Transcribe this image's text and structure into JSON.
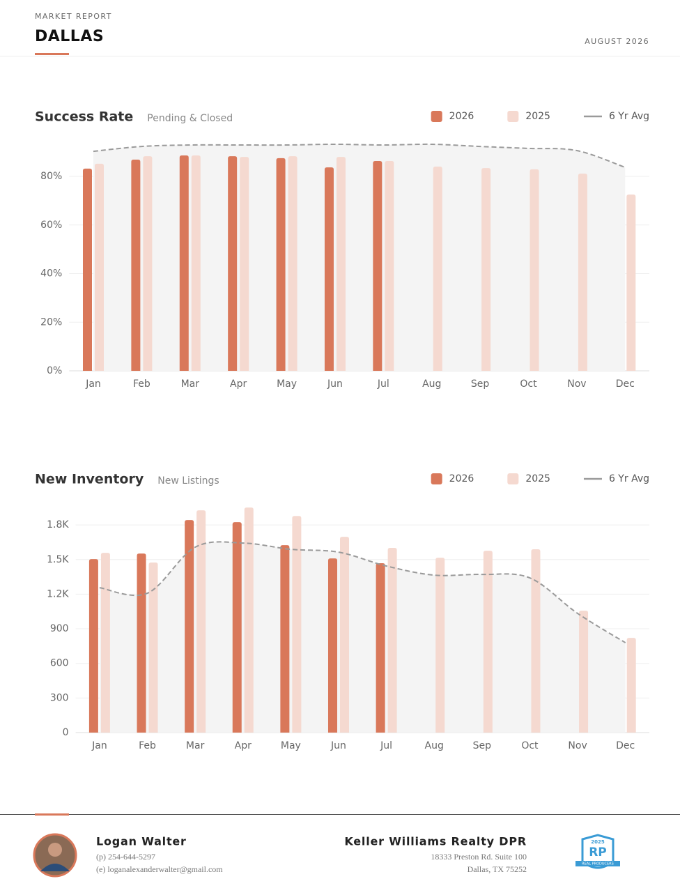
{
  "header": {
    "label": "MARKET REPORT",
    "city": "DALLAS",
    "date": "AUGUST 2026"
  },
  "chart_data": [
    {
      "type": "bar",
      "title": "Success Rate",
      "subtitle": "Pending & Closed",
      "categories": [
        "Jan",
        "Feb",
        "Mar",
        "Apr",
        "May",
        "Jun",
        "Jul",
        "Aug",
        "Sep",
        "Oct",
        "Nov",
        "Dec"
      ],
      "series": [
        {
          "name": "2026",
          "color": "#d9785a",
          "values": [
            83.2,
            86.9,
            88.6,
            88.3,
            87.5,
            83.7,
            86.3,
            null,
            null,
            null,
            null,
            null
          ]
        },
        {
          "name": "2025",
          "color": "#f5d9d0",
          "values": [
            85.2,
            88.3,
            88.6,
            88.0,
            88.3,
            88.0,
            86.3,
            84.0,
            83.4,
            82.9,
            81.1,
            72.5
          ]
        },
        {
          "name": "6 Yr Avg",
          "type": "line",
          "dashed": true,
          "area": true,
          "color": "#9a9a9a",
          "values": [
            90.3,
            92.3,
            92.9,
            92.9,
            92.9,
            93.2,
            92.9,
            93.2,
            92.3,
            91.5,
            90.6,
            83.7
          ]
        }
      ],
      "ylim": [
        0,
        95
      ],
      "yticks": [
        {
          "value": 0,
          "label": "0%"
        },
        {
          "value": 20,
          "label": "20%"
        },
        {
          "value": 40,
          "label": "40%"
        },
        {
          "value": 60,
          "label": "60%"
        },
        {
          "value": 80,
          "label": "80%"
        }
      ],
      "grid": true,
      "legend": "top-right"
    },
    {
      "type": "bar",
      "title": "New Inventory",
      "subtitle": "New Listings",
      "categories": [
        "Jan",
        "Feb",
        "Mar",
        "Apr",
        "May",
        "Jun",
        "Jul",
        "Aug",
        "Sep",
        "Oct",
        "Nov",
        "Dec"
      ],
      "series": [
        {
          "name": "2026",
          "color": "#d9785a",
          "values": [
            1504,
            1552,
            1842,
            1824,
            1625,
            1510,
            1468,
            null,
            null,
            null,
            null,
            null
          ]
        },
        {
          "name": "2025",
          "color": "#f5d9d0",
          "values": [
            1558,
            1474,
            1927,
            1951,
            1878,
            1697,
            1601,
            1516,
            1576,
            1589,
            1057,
            821
          ]
        },
        {
          "name": "6 Yr Avg",
          "type": "line",
          "dashed": true,
          "area": true,
          "color": "#9a9a9a",
          "values": [
            1256,
            1208,
            1607,
            1643,
            1589,
            1564,
            1444,
            1365,
            1371,
            1341,
            1033,
            779
          ]
        }
      ],
      "ylim": [
        0,
        2000
      ],
      "yticks": [
        0,
        300,
        600,
        900,
        {
          "value": 1200,
          "label": "1.2K"
        },
        {
          "value": 1500,
          "label": "1.5K"
        },
        {
          "value": 1800,
          "label": "1.8K"
        }
      ],
      "grid": true,
      "legend": "top-right"
    }
  ],
  "footer": {
    "agent": "Logan Walter",
    "phone": "(p) 254-644-5297",
    "email": "(e) loganalexanderwalter@gmail.com",
    "company": "Keller Williams Realty DPR",
    "address1": "18333 Preston Rd. Suite 100",
    "address2": "Dallas, TX 75252",
    "badge": {
      "year": "2025",
      "letters": "RP",
      "caption": "REAL PRODUCERS"
    }
  }
}
